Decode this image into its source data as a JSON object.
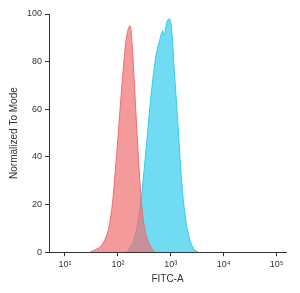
{
  "chart_data": {
    "type": "area",
    "x_label": "FITC-A",
    "y_label": "Normalized To Mode",
    "log": "x",
    "grid": false,
    "xlim": [
      5,
      150000
    ],
    "xticks": [
      {
        "value": 10,
        "label": "10¹"
      },
      {
        "value": 100,
        "label": "10²"
      },
      {
        "value": 1000,
        "label": "10³"
      },
      {
        "value": 10000,
        "label": "10⁴"
      },
      {
        "value": 100000,
        "label": "10⁵"
      }
    ],
    "ylim": [
      0,
      100
    ],
    "yticks": [
      0,
      20,
      40,
      60,
      80,
      100
    ],
    "series": [
      {
        "color": "#ef6f6f",
        "x": [
          30,
          50,
          70,
          90,
          110,
          130,
          150,
          170,
          185,
          200,
          230,
          270,
          320,
          400,
          500
        ],
        "values": [
          0,
          3,
          12,
          35,
          60,
          80,
          92,
          95,
          88,
          75,
          50,
          25,
          10,
          3,
          0
        ]
      },
      {
        "color": "#33ccee",
        "x": [
          150,
          200,
          260,
          330,
          420,
          520,
          600,
          700,
          750,
          850,
          950,
          1050,
          1150,
          1350,
          1600,
          1900,
          2300,
          2800,
          3300
        ],
        "values": [
          0,
          5,
          18,
          40,
          65,
          82,
          88,
          93,
          91,
          97,
          98,
          92,
          78,
          55,
          30,
          14,
          5,
          1,
          0
        ]
      }
    ]
  }
}
